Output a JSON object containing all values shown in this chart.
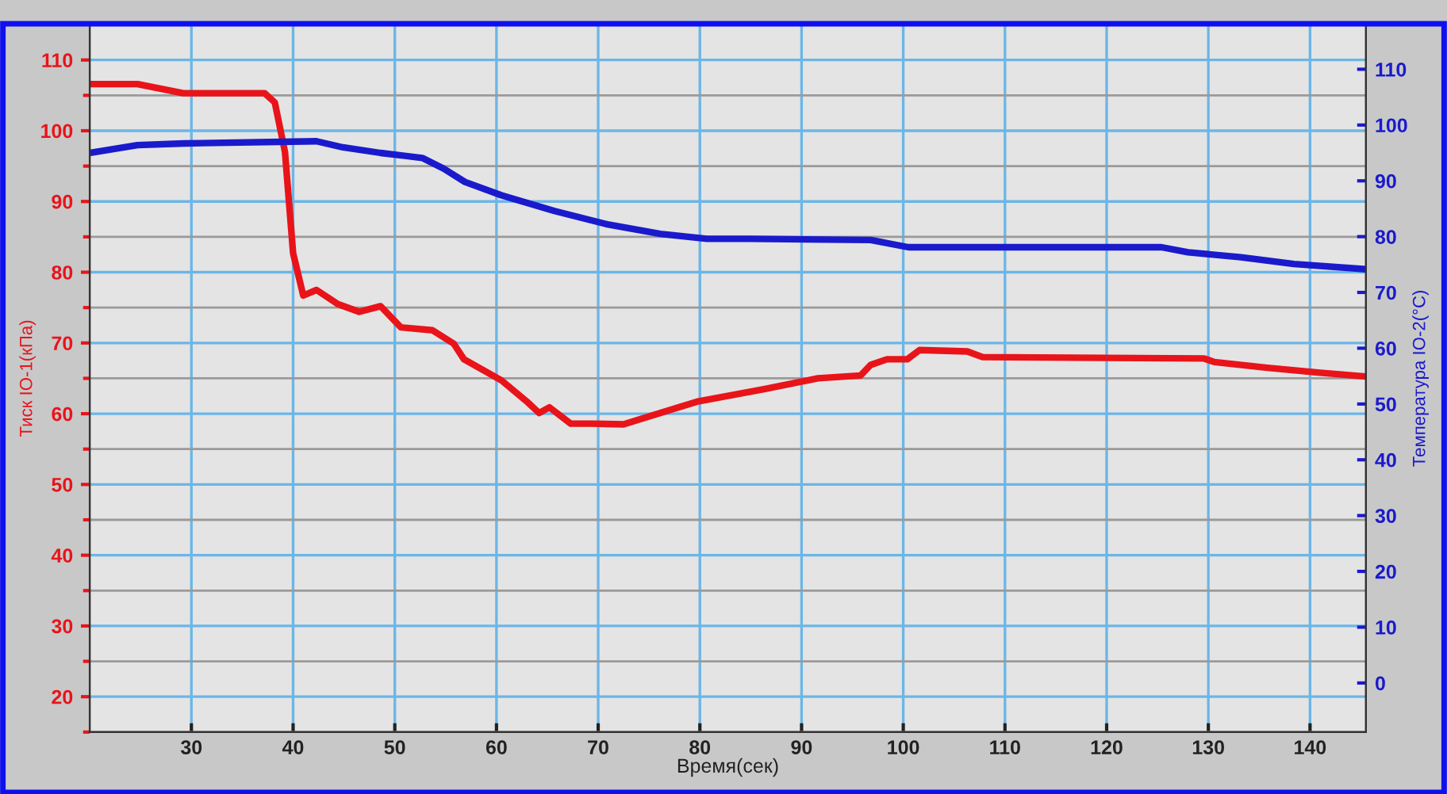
{
  "chart_data": {
    "type": "line",
    "xlabel": "Время(сек)",
    "ylabel": "Тиск ІО-1(кПа)",
    "y2label": "Температура ІО-2(°C)",
    "xlim": [
      20,
      145.5
    ],
    "xticks": [
      30,
      40,
      50,
      60,
      70,
      80,
      90,
      100,
      110,
      120,
      130,
      140
    ],
    "ylim": [
      15,
      115
    ],
    "yticks": [
      20,
      30,
      40,
      50,
      60,
      70,
      80,
      90,
      100,
      110
    ],
    "y2lim": [
      -8.8,
      118
    ],
    "y2ticks": [
      0,
      10,
      20,
      30,
      40,
      50,
      60,
      70,
      80,
      90,
      100,
      110
    ],
    "grid": true,
    "series": [
      {
        "color": "#e8141a",
        "x": [
          20,
          24.7,
          29.2,
          37.2,
          38.2,
          39.2,
          40,
          41,
          42.3,
          44.4,
          46.5,
          48.6,
          50.6,
          53.7,
          55.8,
          56.8,
          60.5,
          63,
          64.2,
          65.2,
          67.3,
          69.3,
          72.5,
          74.5,
          79.7,
          86.4,
          91.6,
          95.8,
          96.8,
          98.4,
          100.4,
          101.6,
          106.3,
          107.8,
          129.6,
          130.6,
          135.8,
          141,
          145.2
        ],
        "values": [
          106.6,
          106.6,
          105.3,
          105.3,
          104,
          97,
          82.7,
          76.7,
          77.5,
          75.5,
          74.4,
          75.2,
          72.2,
          71.8,
          69.9,
          67.7,
          64.7,
          61.7,
          60.1,
          60.9,
          58.6,
          58.6,
          58.5,
          59.4,
          61.7,
          63.5,
          65,
          65.4,
          66.9,
          67.7,
          67.7,
          69,
          68.8,
          68,
          67.8,
          67.3,
          66.5,
          65.8,
          65.3
        ]
      },
      {
        "color": "#1a1acc",
        "axis": "y2",
        "x": [
          20,
          24.7,
          29.3,
          42.3,
          44.9,
          48.6,
          52.7,
          54.8,
          56.9,
          60.5,
          65.7,
          70.9,
          76.1,
          80.7,
          84.9,
          96.8,
          100.5,
          125.4,
          128,
          133.2,
          138.4,
          145.2
        ],
        "values": [
          95,
          96.4,
          96.7,
          97.1,
          96,
          95,
          94.1,
          92.2,
          89.8,
          87.4,
          84.6,
          82.2,
          80.5,
          79.6,
          79.6,
          79.4,
          78.1,
          78.1,
          77.2,
          76.3,
          75.1,
          74.2
        ]
      }
    ]
  }
}
